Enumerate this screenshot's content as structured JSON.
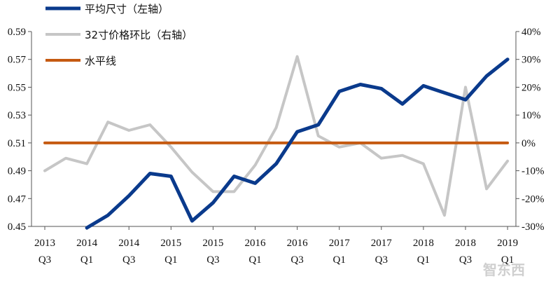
{
  "chart_data": {
    "type": "line",
    "title": "",
    "categories": [
      "2013 Q3",
      "2014 Q1",
      "2014 Q3",
      "2015 Q1",
      "2015 Q3",
      "2016 Q1",
      "2016 Q3",
      "2017 Q1",
      "2017 Q3",
      "2018 Q1",
      "2018 Q3",
      "2019 Q1"
    ],
    "x_ticks": [
      {
        "year": "2013",
        "quarter": "Q3"
      },
      {
        "year": "2014",
        "quarter": "Q1"
      },
      {
        "year": "2014",
        "quarter": "Q3"
      },
      {
        "year": "2015",
        "quarter": "Q1"
      },
      {
        "year": "2015",
        "quarter": "Q3"
      },
      {
        "year": "2016",
        "quarter": "Q1"
      },
      {
        "year": "2016",
        "quarter": "Q3"
      },
      {
        "year": "2017",
        "quarter": "Q1"
      },
      {
        "year": "2017",
        "quarter": "Q3"
      },
      {
        "year": "2018",
        "quarter": "Q1"
      },
      {
        "year": "2018",
        "quarter": "Q3"
      },
      {
        "year": "2019",
        "quarter": "Q1"
      }
    ],
    "x_index_range": [
      0,
      22
    ],
    "y_left": {
      "min": 0.45,
      "max": 0.59,
      "ticks": [
        "0.59",
        "0.57",
        "0.55",
        "0.53",
        "0.51",
        "0.49",
        "0.47",
        "0.45"
      ],
      "tick_values": [
        0.59,
        0.57,
        0.55,
        0.53,
        0.51,
        0.49,
        0.47,
        0.45
      ]
    },
    "y_right": {
      "min": -30,
      "max": 40,
      "ticks": [
        "40%",
        "30%",
        "20%",
        "10%",
        "0%",
        "-10%",
        "-20%",
        "-30%"
      ],
      "tick_values": [
        40,
        30,
        20,
        10,
        0,
        -10,
        -20,
        -30
      ]
    },
    "series": [
      {
        "name": "平均尺寸（左轴）",
        "axis": "left",
        "color": "#0a3a8c",
        "x": [
          2,
          3,
          4,
          5,
          6,
          7,
          8,
          9,
          10,
          11,
          12,
          13,
          14,
          15,
          16,
          17,
          18,
          19,
          20,
          21,
          22
        ],
        "values": [
          0.449,
          0.458,
          0.472,
          0.488,
          0.486,
          0.454,
          0.467,
          0.486,
          0.481,
          0.495,
          0.518,
          0.523,
          0.547,
          0.552,
          0.549,
          0.538,
          0.551,
          0.546,
          0.541,
          0.558,
          0.57
        ]
      },
      {
        "name": "32寸价格环比（右轴）",
        "axis": "right",
        "color": "#c6c6c6",
        "x": [
          0,
          1,
          2,
          3,
          4,
          5,
          6,
          7,
          8,
          9,
          10,
          11,
          12,
          13,
          14,
          15,
          16,
          17,
          18,
          19,
          20,
          21,
          22
        ],
        "values": [
          -10,
          -5.5,
          -7.5,
          7.5,
          4.5,
          6.5,
          -1.5,
          -10.5,
          -17.5,
          -17.5,
          -8,
          5.5,
          31,
          2.5,
          -1.5,
          0,
          -5.5,
          -4.5,
          -7.5,
          -26,
          20,
          -16.5,
          -6.5
        ]
      },
      {
        "name": "水平线",
        "axis": "right",
        "color": "#c55a11",
        "x": [
          0,
          22
        ],
        "values": [
          0,
          0
        ]
      }
    ],
    "legend": {
      "position": "top-left",
      "entries": [
        "平均尺寸（左轴）",
        "32寸价格环比（右轴）",
        "水平线"
      ]
    },
    "grid": false
  },
  "watermark": {
    "text": "智东西"
  }
}
